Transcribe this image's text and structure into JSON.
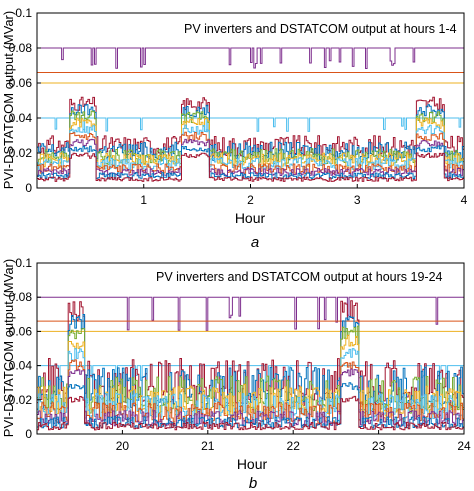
{
  "chart_data": [
    {
      "panel_label": "a",
      "type": "line",
      "annotation": "PV inverters and DSTATCOM output at hours 1-4",
      "xlabel": "Hour",
      "ylabel": "PVI-DSTATCOM output (MVar)",
      "xlim": [
        0,
        4
      ],
      "ylim": [
        0,
        0.1
      ],
      "xticks": [
        "1",
        "2",
        "3",
        "4"
      ],
      "yticks": [
        "0",
        "0.02",
        "0.04",
        "0.06",
        "0.08",
        "0.1"
      ],
      "grid": false,
      "series": [
        {
          "color": "#7E2F8E",
          "base": 0.08,
          "low": 0.068,
          "style": "flat_dips"
        },
        {
          "color": "#D95319",
          "base": 0.066,
          "style": "flat"
        },
        {
          "color": "#EDB120",
          "base": 0.06,
          "style": "flat"
        },
        {
          "color": "#4DBEEE",
          "base": 0.04,
          "low": 0.032,
          "style": "flat_dips"
        },
        {
          "color": "#A2142F",
          "base": 0.024,
          "peak": 0.052,
          "style": "bumpy"
        },
        {
          "color": "#0072BD",
          "base": 0.021,
          "peak": 0.048,
          "style": "bumpy"
        },
        {
          "color": "#77AC30",
          "base": 0.018,
          "peak": 0.044,
          "style": "bumpy"
        },
        {
          "color": "#EDB120",
          "base": 0.016,
          "peak": 0.04,
          "style": "bumpy"
        },
        {
          "color": "#4DBEEE",
          "base": 0.014,
          "peak": 0.036,
          "style": "bumpy"
        },
        {
          "color": "#D95319",
          "base": 0.011,
          "peak": 0.032,
          "style": "bumpy"
        },
        {
          "color": "#7E2F8E",
          "base": 0.009,
          "peak": 0.028,
          "style": "bumpy"
        },
        {
          "color": "#0072BD",
          "base": 0.007,
          "peak": 0.024,
          "style": "bumpy"
        },
        {
          "color": "#A2142F",
          "base": 0.005,
          "peak": 0.02,
          "style": "bumpy"
        }
      ],
      "bumps": [
        [
          0.3,
          0.55
        ],
        [
          1.35,
          1.6
        ],
        [
          3.55,
          3.8
        ]
      ]
    },
    {
      "panel_label": "b",
      "type": "line",
      "annotation": "PV inverters and DSTATCOM output at hours 19-24",
      "xlabel": "Hour",
      "ylabel": "PVI-DSTATCOM output (MVar)",
      "xlim": [
        19,
        24
      ],
      "ylim": [
        0,
        0.1
      ],
      "xticks": [
        "20",
        "21",
        "22",
        "23",
        "24"
      ],
      "yticks": [
        "0",
        "0.02",
        "0.04",
        "0.06",
        "0.08",
        "0.1"
      ],
      "grid": false,
      "series": [
        {
          "color": "#7E2F8E",
          "base": 0.08,
          "low": 0.06,
          "style": "flat_dips"
        },
        {
          "color": "#D95319",
          "base": 0.066,
          "style": "flat"
        },
        {
          "color": "#EDB120",
          "base": 0.06,
          "style": "flat"
        },
        {
          "color": "#4DBEEE",
          "base": 0.04,
          "low": 0.03,
          "style": "flat_dips"
        },
        {
          "color": "#A2142F",
          "base": 0.026,
          "peak": 0.078,
          "style": "spiky"
        },
        {
          "color": "#0072BD",
          "base": 0.023,
          "peak": 0.07,
          "style": "spiky"
        },
        {
          "color": "#77AC30",
          "base": 0.02,
          "peak": 0.064,
          "style": "spiky"
        },
        {
          "color": "#EDB120",
          "base": 0.017,
          "peak": 0.058,
          "style": "spiky"
        },
        {
          "color": "#4DBEEE",
          "base": 0.014,
          "peak": 0.05,
          "style": "spiky"
        },
        {
          "color": "#D95319",
          "base": 0.011,
          "peak": 0.044,
          "style": "spiky"
        },
        {
          "color": "#7E2F8E",
          "base": 0.008,
          "peak": 0.038,
          "style": "spiky"
        },
        {
          "color": "#0072BD",
          "base": 0.006,
          "peak": 0.03,
          "style": "spiky"
        },
        {
          "color": "#A2142F",
          "base": 0.004,
          "peak": 0.022,
          "style": "spiky"
        }
      ],
      "bumps": [
        [
          19.35,
          19.55
        ],
        [
          22.55,
          22.75
        ]
      ]
    }
  ]
}
